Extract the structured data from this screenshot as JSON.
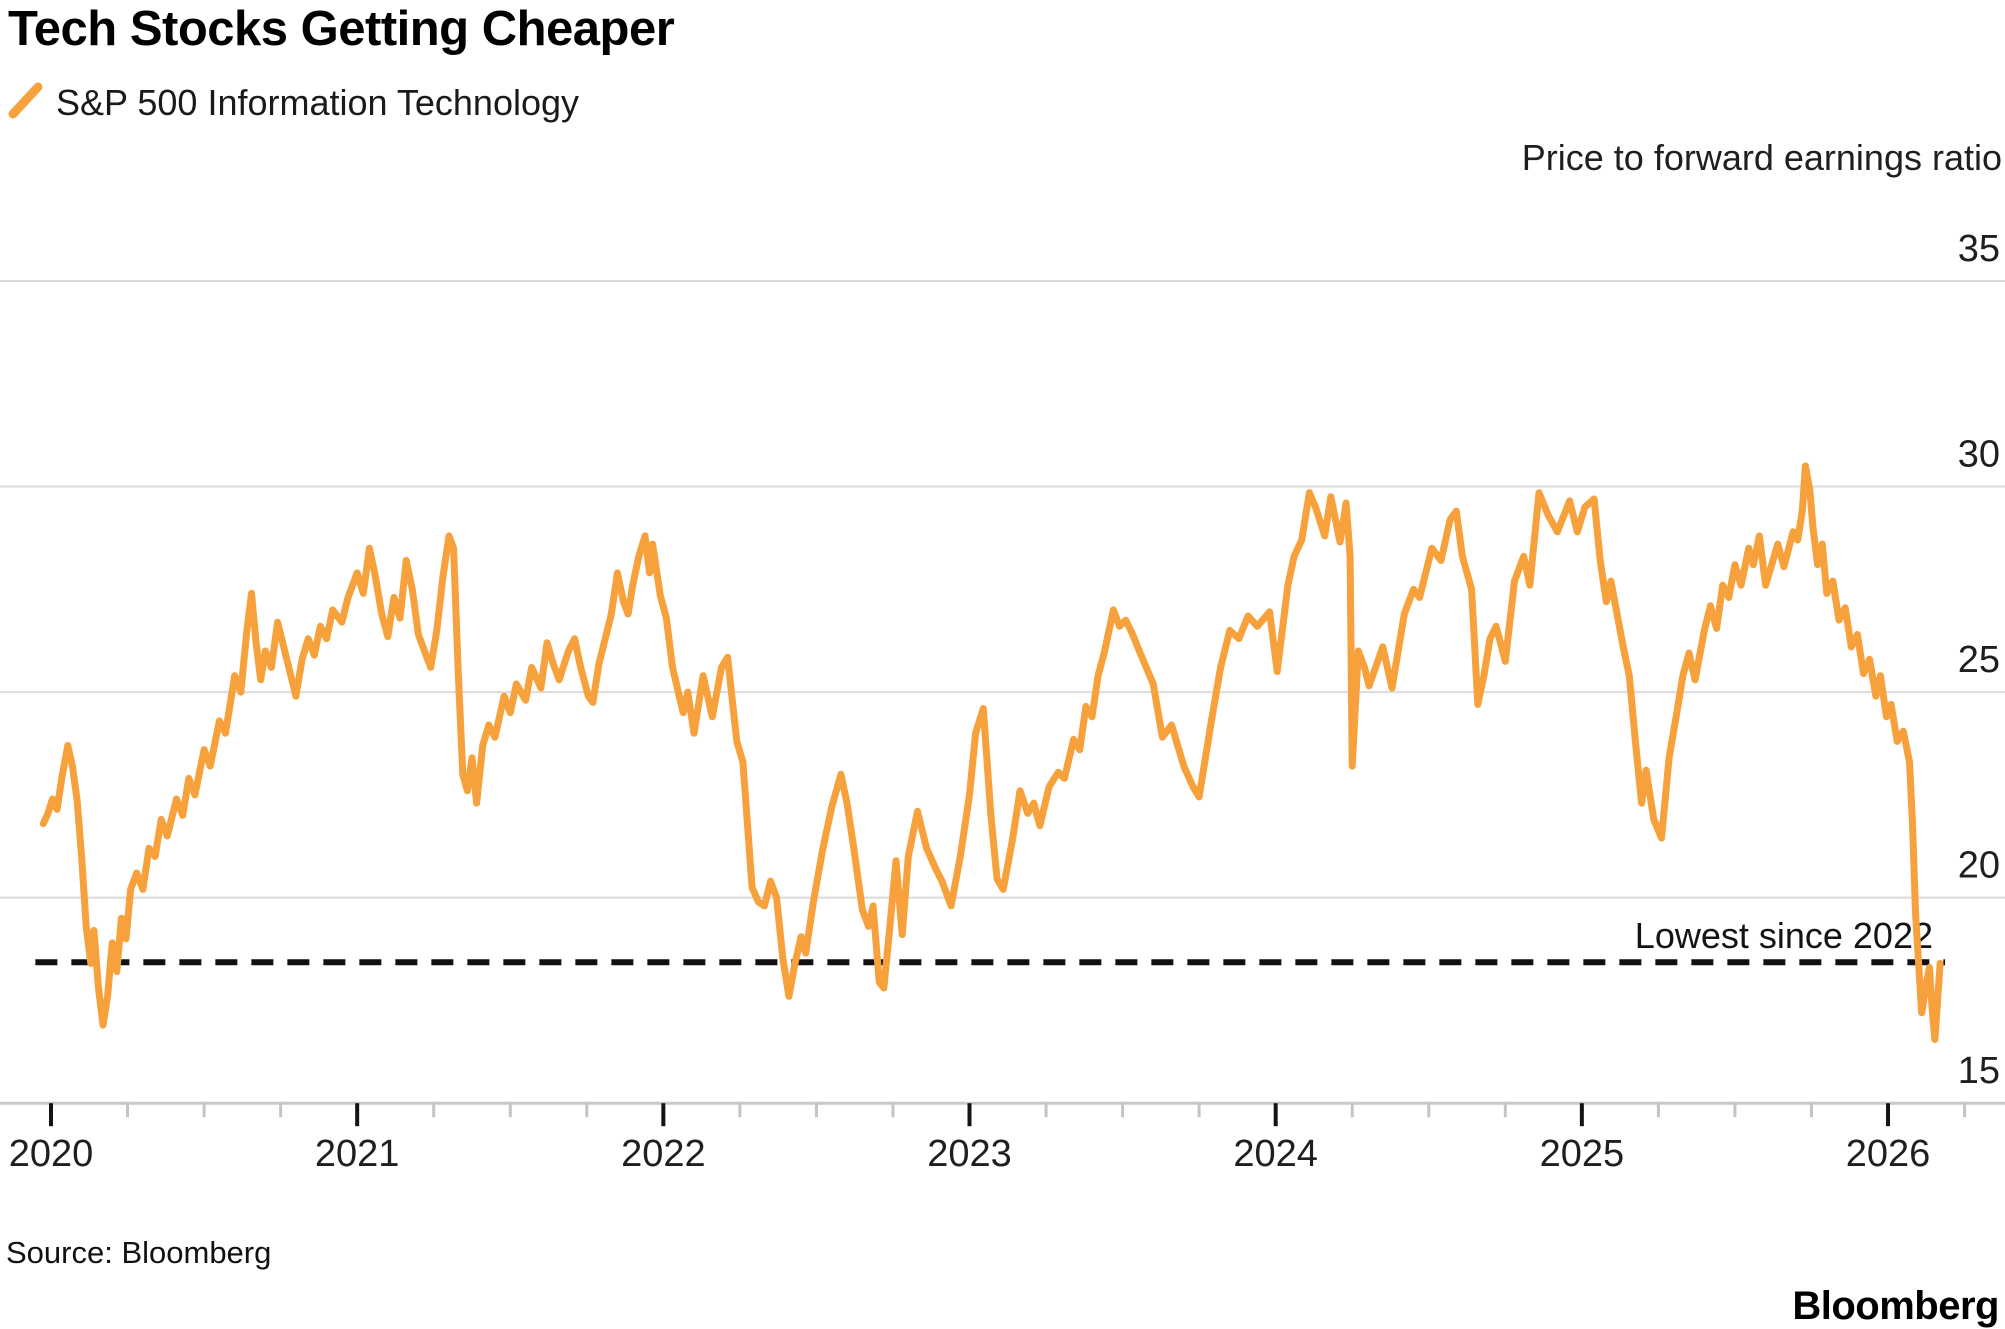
{
  "title": "Tech Stocks Getting Cheaper",
  "legend": {
    "label": "S&P 500 Information Technology",
    "swatch_color": "#F6A13C"
  },
  "footer": {
    "source": "Source: Bloomberg",
    "brand": "Bloomberg"
  },
  "colors": {
    "series_orange": "#F6A13C",
    "gridline": "#DBDBDB",
    "axis_line": "#C9C9C9",
    "minor_tick": "#C4C4C4",
    "major_tick": "#141414",
    "text": "#1f1f1f",
    "reference_line": "#111111",
    "background": "#ffffff"
  },
  "chart_data": {
    "type": "line",
    "title": "Tech Stocks Getting Cheaper",
    "axis_label": "Price to forward earnings ratio",
    "xlabel": "",
    "ylabel": "Price to forward earnings ratio",
    "ylim": [
      15,
      35
    ],
    "xlim": [
      2019.83,
      2026.38
    ],
    "grid": "horizontal",
    "legend_position": "top-left",
    "y_tick_side": "right",
    "yticks": [
      35,
      30,
      25,
      20,
      15
    ],
    "xticks": {
      "major": [
        2020,
        2021,
        2022,
        2023,
        2024,
        2025,
        2026
      ],
      "minor_interval": 0.25
    },
    "reference_line": {
      "value": 18.43,
      "label": "Lowest since 2022",
      "style": "dashed"
    },
    "series": [
      {
        "name": "S&P 500 Information Technology",
        "color": "#F6A13C",
        "points": [
          [
            2019.975,
            21.8
          ],
          [
            2019.99,
            22.05
          ],
          [
            2020.005,
            22.4
          ],
          [
            2020.02,
            22.15
          ],
          [
            2020.035,
            22.9
          ],
          [
            2020.055,
            23.7
          ],
          [
            2020.07,
            23.2
          ],
          [
            2020.085,
            22.4
          ],
          [
            2020.1,
            21.0
          ],
          [
            2020.115,
            19.3
          ],
          [
            2020.13,
            18.4
          ],
          [
            2020.14,
            19.2
          ],
          [
            2020.155,
            17.8
          ],
          [
            2020.17,
            16.9
          ],
          [
            2020.185,
            17.6
          ],
          [
            2020.2,
            18.9
          ],
          [
            2020.215,
            18.2
          ],
          [
            2020.23,
            19.5
          ],
          [
            2020.245,
            19.0
          ],
          [
            2020.26,
            20.2
          ],
          [
            2020.28,
            20.6
          ],
          [
            2020.3,
            20.2
          ],
          [
            2020.32,
            21.2
          ],
          [
            2020.34,
            21.0
          ],
          [
            2020.36,
            21.9
          ],
          [
            2020.38,
            21.5
          ],
          [
            2020.41,
            22.4
          ],
          [
            2020.43,
            22.0
          ],
          [
            2020.45,
            22.9
          ],
          [
            2020.47,
            22.5
          ],
          [
            2020.5,
            23.6
          ],
          [
            2020.52,
            23.2
          ],
          [
            2020.55,
            24.3
          ],
          [
            2020.57,
            24.0
          ],
          [
            2020.6,
            25.4
          ],
          [
            2020.62,
            25.0
          ],
          [
            2020.64,
            26.5
          ],
          [
            2020.655,
            27.4
          ],
          [
            2020.67,
            26.2
          ],
          [
            2020.685,
            25.3
          ],
          [
            2020.7,
            26.0
          ],
          [
            2020.72,
            25.6
          ],
          [
            2020.74,
            26.7
          ],
          [
            2020.76,
            26.1
          ],
          [
            2020.78,
            25.5
          ],
          [
            2020.8,
            24.9
          ],
          [
            2020.82,
            25.8
          ],
          [
            2020.84,
            26.3
          ],
          [
            2020.86,
            25.9
          ],
          [
            2020.88,
            26.6
          ],
          [
            2020.9,
            26.3
          ],
          [
            2020.92,
            27.0
          ],
          [
            2020.95,
            26.7
          ],
          [
            2020.97,
            27.3
          ],
          [
            2021.0,
            27.9
          ],
          [
            2021.02,
            27.4
          ],
          [
            2021.04,
            28.5
          ],
          [
            2021.06,
            27.8
          ],
          [
            2021.08,
            26.9
          ],
          [
            2021.1,
            26.35
          ],
          [
            2021.12,
            27.3
          ],
          [
            2021.14,
            26.8
          ],
          [
            2021.16,
            28.2
          ],
          [
            2021.18,
            27.5
          ],
          [
            2021.2,
            26.4
          ],
          [
            2021.22,
            26.0
          ],
          [
            2021.24,
            25.6
          ],
          [
            2021.26,
            26.5
          ],
          [
            2021.28,
            27.8
          ],
          [
            2021.3,
            28.8
          ],
          [
            2021.315,
            28.5
          ],
          [
            2021.33,
            25.5
          ],
          [
            2021.345,
            23.0
          ],
          [
            2021.36,
            22.6
          ],
          [
            2021.375,
            23.4
          ],
          [
            2021.39,
            22.3
          ],
          [
            2021.41,
            23.7
          ],
          [
            2021.43,
            24.2
          ],
          [
            2021.45,
            23.9
          ],
          [
            2021.48,
            24.9
          ],
          [
            2021.5,
            24.5
          ],
          [
            2021.52,
            25.2
          ],
          [
            2021.55,
            24.8
          ],
          [
            2021.57,
            25.6
          ],
          [
            2021.6,
            25.1
          ],
          [
            2021.62,
            26.2
          ],
          [
            2021.64,
            25.7
          ],
          [
            2021.66,
            25.3
          ],
          [
            2021.69,
            26.0
          ],
          [
            2021.71,
            26.3
          ],
          [
            2021.73,
            25.6
          ],
          [
            2021.755,
            24.9
          ],
          [
            2021.77,
            24.75
          ],
          [
            2021.79,
            25.7
          ],
          [
            2021.81,
            26.3
          ],
          [
            2021.83,
            26.9
          ],
          [
            2021.85,
            27.9
          ],
          [
            2021.87,
            27.2
          ],
          [
            2021.885,
            26.9
          ],
          [
            2021.9,
            27.6
          ],
          [
            2021.92,
            28.3
          ],
          [
            2021.94,
            28.8
          ],
          [
            2021.955,
            27.9
          ],
          [
            2021.965,
            28.6
          ],
          [
            2021.99,
            27.35
          ],
          [
            2022.01,
            26.8
          ],
          [
            2022.03,
            25.6
          ],
          [
            2022.065,
            24.5
          ],
          [
            2022.08,
            25.0
          ],
          [
            2022.1,
            24.0
          ],
          [
            2022.13,
            25.4
          ],
          [
            2022.16,
            24.4
          ],
          [
            2022.19,
            25.6
          ],
          [
            2022.21,
            25.85
          ],
          [
            2022.24,
            23.8
          ],
          [
            2022.26,
            23.3
          ],
          [
            2022.29,
            20.25
          ],
          [
            2022.31,
            19.9
          ],
          [
            2022.33,
            19.8
          ],
          [
            2022.35,
            20.4
          ],
          [
            2022.37,
            20.0
          ],
          [
            2022.39,
            18.55
          ],
          [
            2022.41,
            17.6
          ],
          [
            2022.43,
            18.4
          ],
          [
            2022.45,
            19.05
          ],
          [
            2022.465,
            18.65
          ],
          [
            2022.49,
            19.9
          ],
          [
            2022.52,
            21.15
          ],
          [
            2022.55,
            22.2
          ],
          [
            2022.58,
            23.0
          ],
          [
            2022.6,
            22.3
          ],
          [
            2022.62,
            21.3
          ],
          [
            2022.65,
            19.7
          ],
          [
            2022.67,
            19.3
          ],
          [
            2022.685,
            19.8
          ],
          [
            2022.705,
            17.95
          ],
          [
            2022.72,
            17.8
          ],
          [
            2022.74,
            19.3
          ],
          [
            2022.76,
            20.9
          ],
          [
            2022.78,
            19.1
          ],
          [
            2022.8,
            21.0
          ],
          [
            2022.83,
            22.1
          ],
          [
            2022.86,
            21.2
          ],
          [
            2022.89,
            20.7
          ],
          [
            2022.91,
            20.4
          ],
          [
            2022.94,
            19.8
          ],
          [
            2022.97,
            21.0
          ],
          [
            2023.0,
            22.5
          ],
          [
            2023.02,
            24.0
          ],
          [
            2023.045,
            24.6
          ],
          [
            2023.07,
            22.0
          ],
          [
            2023.09,
            20.45
          ],
          [
            2023.11,
            20.2
          ],
          [
            2023.14,
            21.4
          ],
          [
            2023.165,
            22.6
          ],
          [
            2023.19,
            22.05
          ],
          [
            2023.21,
            22.3
          ],
          [
            2023.23,
            21.75
          ],
          [
            2023.26,
            22.7
          ],
          [
            2023.29,
            23.05
          ],
          [
            2023.31,
            22.9
          ],
          [
            2023.34,
            23.85
          ],
          [
            2023.36,
            23.6
          ],
          [
            2023.38,
            24.65
          ],
          [
            2023.4,
            24.4
          ],
          [
            2023.42,
            25.4
          ],
          [
            2023.44,
            25.95
          ],
          [
            2023.47,
            27.0
          ],
          [
            2023.49,
            26.6
          ],
          [
            2023.51,
            26.75
          ],
          [
            2023.53,
            26.45
          ],
          [
            2023.56,
            25.9
          ],
          [
            2023.6,
            25.2
          ],
          [
            2023.63,
            23.9
          ],
          [
            2023.66,
            24.2
          ],
          [
            2023.7,
            23.2
          ],
          [
            2023.73,
            22.7
          ],
          [
            2023.75,
            22.45
          ],
          [
            2023.79,
            24.3
          ],
          [
            2023.82,
            25.6
          ],
          [
            2023.85,
            26.5
          ],
          [
            2023.88,
            26.3
          ],
          [
            2023.91,
            26.85
          ],
          [
            2023.94,
            26.6
          ],
          [
            2023.98,
            26.95
          ],
          [
            2024.005,
            25.5
          ],
          [
            2024.04,
            27.6
          ],
          [
            2024.06,
            28.3
          ],
          [
            2024.085,
            28.7
          ],
          [
            2024.11,
            29.85
          ],
          [
            2024.13,
            29.5
          ],
          [
            2024.16,
            28.8
          ],
          [
            2024.18,
            29.75
          ],
          [
            2024.21,
            28.65
          ],
          [
            2024.23,
            29.6
          ],
          [
            2024.243,
            28.3
          ],
          [
            2024.25,
            23.2
          ],
          [
            2024.27,
            26.0
          ],
          [
            2024.29,
            25.6
          ],
          [
            2024.305,
            25.15
          ],
          [
            2024.35,
            26.1
          ],
          [
            2024.38,
            25.1
          ],
          [
            2024.42,
            26.9
          ],
          [
            2024.45,
            27.5
          ],
          [
            2024.47,
            27.3
          ],
          [
            2024.51,
            28.5
          ],
          [
            2024.54,
            28.2
          ],
          [
            2024.57,
            29.2
          ],
          [
            2024.59,
            29.4
          ],
          [
            2024.61,
            28.3
          ],
          [
            2024.64,
            27.5
          ],
          [
            2024.66,
            24.7
          ],
          [
            2024.68,
            25.4
          ],
          [
            2024.7,
            26.3
          ],
          [
            2024.72,
            26.6
          ],
          [
            2024.75,
            25.75
          ],
          [
            2024.78,
            27.7
          ],
          [
            2024.81,
            28.3
          ],
          [
            2024.83,
            27.6
          ],
          [
            2024.86,
            29.85
          ],
          [
            2024.89,
            29.3
          ],
          [
            2024.92,
            28.9
          ],
          [
            2024.96,
            29.65
          ],
          [
            2024.985,
            28.9
          ],
          [
            2025.01,
            29.5
          ],
          [
            2025.04,
            29.7
          ],
          [
            2025.06,
            28.2
          ],
          [
            2025.08,
            27.2
          ],
          [
            2025.095,
            27.7
          ],
          [
            2025.12,
            26.7
          ],
          [
            2025.135,
            26.1
          ],
          [
            2025.155,
            25.4
          ],
          [
            2025.175,
            23.8
          ],
          [
            2025.195,
            22.3
          ],
          [
            2025.21,
            23.1
          ],
          [
            2025.235,
            21.9
          ],
          [
            2025.26,
            21.45
          ],
          [
            2025.285,
            23.4
          ],
          [
            2025.31,
            24.5
          ],
          [
            2025.33,
            25.4
          ],
          [
            2025.35,
            25.95
          ],
          [
            2025.37,
            25.3
          ],
          [
            2025.4,
            26.5
          ],
          [
            2025.42,
            27.1
          ],
          [
            2025.44,
            26.55
          ],
          [
            2025.46,
            27.6
          ],
          [
            2025.48,
            27.3
          ],
          [
            2025.5,
            28.1
          ],
          [
            2025.52,
            27.6
          ],
          [
            2025.545,
            28.5
          ],
          [
            2025.56,
            28.1
          ],
          [
            2025.58,
            28.8
          ],
          [
            2025.6,
            27.6
          ],
          [
            2025.64,
            28.6
          ],
          [
            2025.66,
            28.05
          ],
          [
            2025.69,
            28.9
          ],
          [
            2025.705,
            28.7
          ],
          [
            2025.72,
            29.4
          ],
          [
            2025.73,
            30.5
          ],
          [
            2025.745,
            29.9
          ],
          [
            2025.755,
            29.0
          ],
          [
            2025.77,
            28.1
          ],
          [
            2025.785,
            28.6
          ],
          [
            2025.8,
            27.4
          ],
          [
            2025.82,
            27.7
          ],
          [
            2025.84,
            26.75
          ],
          [
            2025.86,
            27.05
          ],
          [
            2025.88,
            26.1
          ],
          [
            2025.9,
            26.4
          ],
          [
            2025.92,
            25.45
          ],
          [
            2025.94,
            25.8
          ],
          [
            2025.96,
            24.9
          ],
          [
            2025.975,
            25.4
          ],
          [
            2025.995,
            24.4
          ],
          [
            2026.01,
            24.7
          ],
          [
            2026.03,
            23.8
          ],
          [
            2026.05,
            24.05
          ],
          [
            2026.07,
            23.3
          ],
          [
            2026.08,
            21.8
          ],
          [
            2026.09,
            19.6
          ],
          [
            2026.1,
            18.4
          ],
          [
            2026.11,
            17.2
          ],
          [
            2026.125,
            17.9
          ],
          [
            2026.135,
            18.3
          ],
          [
            2026.145,
            17.2
          ],
          [
            2026.153,
            16.55
          ],
          [
            2026.162,
            17.5
          ],
          [
            2026.17,
            18.4
          ]
        ]
      }
    ]
  }
}
